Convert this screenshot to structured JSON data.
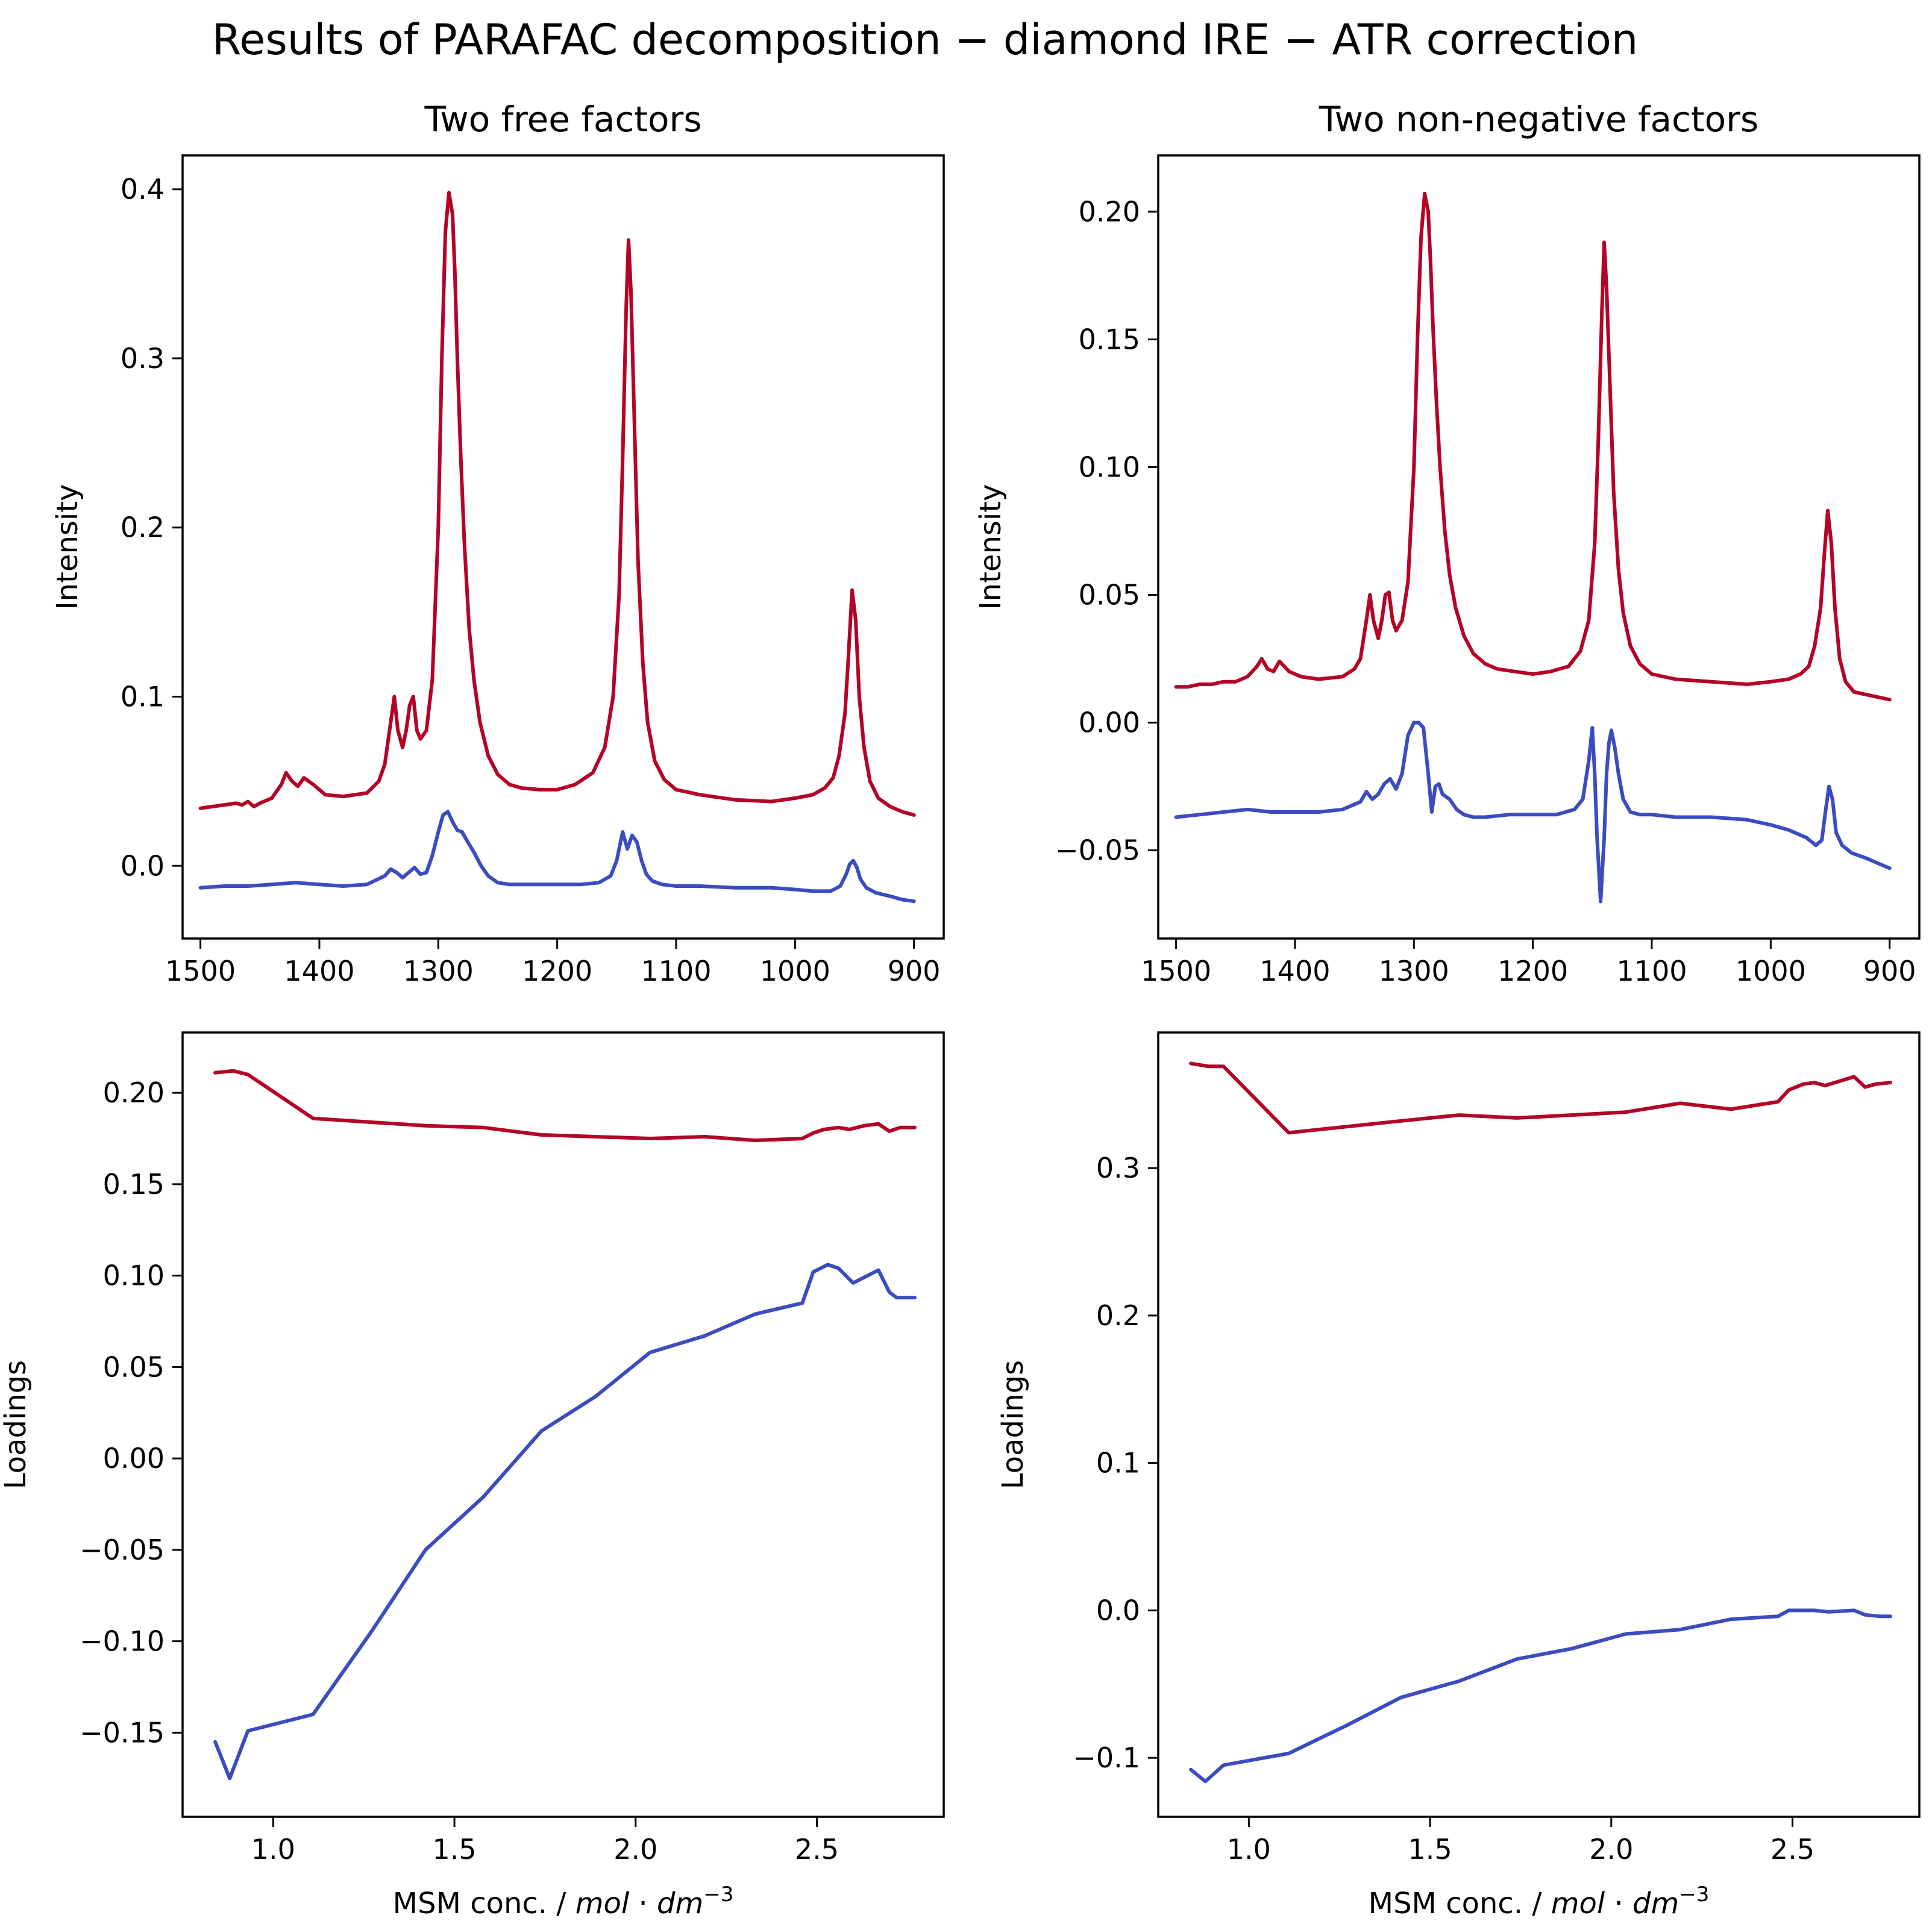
{
  "figure": {
    "title": "Results of PARAFAC decomposition − diamond IRE − ATR correction"
  },
  "colors": {
    "red": "#b40426",
    "blue": "#3b4cc0"
  },
  "chart_data": [
    {
      "id": "tl",
      "type": "line",
      "title": "Two free factors",
      "xlabel": "",
      "ylabel": "Intensity",
      "xlim": [
        1515,
        875
      ],
      "ylim": [
        -0.043,
        0.42
      ],
      "xticks": [
        1500,
        1400,
        1300,
        1200,
        1100,
        1000,
        900
      ],
      "xtick_labels": [
        "1500",
        "1400",
        "1300",
        "1200",
        "1100",
        "1000",
        "900"
      ],
      "yticks": [
        0.0,
        0.1,
        0.2,
        0.3,
        0.4
      ],
      "ytick_labels": [
        "0.0",
        "0.1",
        "0.2",
        "0.3",
        "0.4"
      ],
      "series": [
        {
          "color": "#b40426",
          "x": [
            1500,
            1490,
            1480,
            1470,
            1465,
            1460,
            1455,
            1450,
            1440,
            1432,
            1428,
            1423,
            1418,
            1413,
            1405,
            1395,
            1380,
            1360,
            1350,
            1345,
            1340,
            1337,
            1334,
            1330,
            1327,
            1324,
            1321,
            1318,
            1315,
            1310,
            1305,
            1300,
            1297,
            1294,
            1291,
            1288,
            1286,
            1284,
            1281,
            1278,
            1274,
            1270,
            1265,
            1258,
            1250,
            1240,
            1230,
            1215,
            1200,
            1185,
            1170,
            1160,
            1153,
            1148,
            1145,
            1142,
            1140,
            1138,
            1135,
            1132,
            1128,
            1124,
            1118,
            1110,
            1100,
            1080,
            1050,
            1020,
            1000,
            985,
            975,
            968,
            963,
            958,
            955,
            952,
            949,
            946,
            942,
            937,
            930,
            920,
            910,
            900
          ],
          "y": [
            0.034,
            0.035,
            0.036,
            0.037,
            0.036,
            0.038,
            0.035,
            0.037,
            0.04,
            0.048,
            0.055,
            0.05,
            0.047,
            0.052,
            0.048,
            0.042,
            0.041,
            0.043,
            0.05,
            0.06,
            0.085,
            0.1,
            0.08,
            0.07,
            0.08,
            0.095,
            0.1,
            0.08,
            0.075,
            0.08,
            0.11,
            0.2,
            0.3,
            0.375,
            0.398,
            0.385,
            0.35,
            0.3,
            0.24,
            0.19,
            0.14,
            0.11,
            0.085,
            0.065,
            0.054,
            0.048,
            0.046,
            0.045,
            0.045,
            0.048,
            0.055,
            0.07,
            0.1,
            0.16,
            0.24,
            0.33,
            0.37,
            0.34,
            0.26,
            0.18,
            0.12,
            0.085,
            0.062,
            0.051,
            0.045,
            0.042,
            0.039,
            0.038,
            0.04,
            0.042,
            0.046,
            0.052,
            0.065,
            0.09,
            0.125,
            0.163,
            0.145,
            0.1,
            0.07,
            0.05,
            0.04,
            0.035,
            0.032,
            0.03
          ]
        },
        {
          "color": "#3b4cc0",
          "x": [
            1500,
            1480,
            1460,
            1440,
            1420,
            1400,
            1380,
            1360,
            1345,
            1340,
            1335,
            1330,
            1325,
            1320,
            1315,
            1310,
            1305,
            1300,
            1296,
            1292,
            1288,
            1284,
            1280,
            1276,
            1270,
            1264,
            1258,
            1250,
            1240,
            1220,
            1200,
            1180,
            1165,
            1155,
            1150,
            1145,
            1141,
            1137,
            1133,
            1129,
            1125,
            1120,
            1112,
            1100,
            1080,
            1050,
            1020,
            1000,
            985,
            970,
            962,
            957,
            954,
            951,
            948,
            945,
            940,
            932,
            920,
            910,
            900
          ],
          "y": [
            -0.013,
            -0.012,
            -0.012,
            -0.011,
            -0.01,
            -0.011,
            -0.012,
            -0.011,
            -0.006,
            -0.002,
            -0.004,
            -0.007,
            -0.004,
            -0.001,
            -0.005,
            -0.004,
            0.006,
            0.02,
            0.03,
            0.032,
            0.026,
            0.021,
            0.02,
            0.015,
            0.008,
            0.0,
            -0.006,
            -0.01,
            -0.011,
            -0.011,
            -0.011,
            -0.011,
            -0.01,
            -0.006,
            0.003,
            0.02,
            0.01,
            0.018,
            0.014,
            0.003,
            -0.005,
            -0.009,
            -0.011,
            -0.012,
            -0.012,
            -0.013,
            -0.013,
            -0.014,
            -0.015,
            -0.015,
            -0.012,
            -0.005,
            0.001,
            0.003,
            -0.001,
            -0.008,
            -0.013,
            -0.016,
            -0.018,
            -0.02,
            -0.021
          ]
        }
      ]
    },
    {
      "id": "tr",
      "type": "line",
      "title": "Two non-negative factors",
      "xlabel": "",
      "ylabel": "Intensity",
      "xlim": [
        1515,
        875
      ],
      "ylim": [
        -0.0845,
        0.222
      ],
      "xticks": [
        1500,
        1400,
        1300,
        1200,
        1100,
        1000,
        900
      ],
      "xtick_labels": [
        "1500",
        "1400",
        "1300",
        "1200",
        "1100",
        "1000",
        "900"
      ],
      "yticks": [
        -0.05,
        0.0,
        0.05,
        0.1,
        0.15,
        0.2
      ],
      "ytick_labels": [
        "−0.05",
        "0.00",
        "0.05",
        "0.10",
        "0.15",
        "0.20"
      ],
      "series": [
        {
          "color": "#b40426",
          "x": [
            1500,
            1490,
            1480,
            1470,
            1460,
            1450,
            1440,
            1432,
            1428,
            1423,
            1418,
            1413,
            1405,
            1395,
            1380,
            1360,
            1350,
            1345,
            1340,
            1337,
            1334,
            1330,
            1327,
            1324,
            1321,
            1318,
            1315,
            1310,
            1305,
            1300,
            1297,
            1294,
            1291,
            1288,
            1286,
            1284,
            1281,
            1278,
            1274,
            1270,
            1265,
            1258,
            1250,
            1240,
            1230,
            1215,
            1200,
            1185,
            1170,
            1160,
            1153,
            1148,
            1145,
            1142,
            1140,
            1138,
            1135,
            1132,
            1128,
            1124,
            1118,
            1110,
            1100,
            1080,
            1050,
            1020,
            1000,
            985,
            975,
            968,
            963,
            958,
            955,
            952,
            949,
            946,
            942,
            937,
            930,
            920,
            910,
            900
          ],
          "y": [
            0.014,
            0.014,
            0.015,
            0.015,
            0.016,
            0.016,
            0.018,
            0.022,
            0.025,
            0.021,
            0.02,
            0.024,
            0.02,
            0.018,
            0.017,
            0.018,
            0.021,
            0.025,
            0.04,
            0.05,
            0.04,
            0.033,
            0.04,
            0.05,
            0.051,
            0.04,
            0.036,
            0.04,
            0.055,
            0.1,
            0.15,
            0.19,
            0.207,
            0.2,
            0.18,
            0.155,
            0.125,
            0.1,
            0.075,
            0.058,
            0.045,
            0.034,
            0.027,
            0.023,
            0.021,
            0.02,
            0.019,
            0.02,
            0.022,
            0.028,
            0.04,
            0.07,
            0.11,
            0.16,
            0.188,
            0.17,
            0.13,
            0.09,
            0.06,
            0.043,
            0.03,
            0.023,
            0.019,
            0.017,
            0.016,
            0.015,
            0.016,
            0.017,
            0.019,
            0.022,
            0.03,
            0.045,
            0.065,
            0.083,
            0.07,
            0.045,
            0.025,
            0.016,
            0.012,
            0.011,
            0.01,
            0.009
          ]
        },
        {
          "color": "#3b4cc0",
          "x": [
            1500,
            1480,
            1460,
            1440,
            1420,
            1400,
            1380,
            1360,
            1345,
            1340,
            1335,
            1330,
            1325,
            1320,
            1315,
            1310,
            1305,
            1300,
            1296,
            1292,
            1288,
            1285,
            1282,
            1279,
            1276,
            1270,
            1264,
            1258,
            1250,
            1240,
            1220,
            1200,
            1180,
            1165,
            1158,
            1153,
            1150,
            1148,
            1146,
            1143,
            1140,
            1138,
            1136,
            1134,
            1131,
            1128,
            1124,
            1118,
            1110,
            1100,
            1080,
            1050,
            1020,
            1000,
            985,
            970,
            962,
            957,
            954,
            951,
            948,
            945,
            940,
            932,
            920,
            910,
            900
          ],
          "y": [
            -0.037,
            -0.036,
            -0.035,
            -0.034,
            -0.035,
            -0.035,
            -0.035,
            -0.034,
            -0.031,
            -0.027,
            -0.03,
            -0.028,
            -0.024,
            -0.022,
            -0.026,
            -0.02,
            -0.005,
            0.0,
            0.0,
            -0.002,
            -0.02,
            -0.035,
            -0.025,
            -0.024,
            -0.028,
            -0.03,
            -0.034,
            -0.036,
            -0.037,
            -0.037,
            -0.036,
            -0.036,
            -0.036,
            -0.034,
            -0.03,
            -0.015,
            -0.002,
            -0.02,
            -0.045,
            -0.07,
            -0.045,
            -0.02,
            -0.008,
            -0.003,
            -0.01,
            -0.02,
            -0.03,
            -0.035,
            -0.036,
            -0.036,
            -0.037,
            -0.037,
            -0.038,
            -0.04,
            -0.042,
            -0.045,
            -0.048,
            -0.046,
            -0.035,
            -0.025,
            -0.03,
            -0.043,
            -0.048,
            -0.051,
            -0.053,
            -0.055,
            -0.057
          ]
        }
      ]
    },
    {
      "id": "bl",
      "type": "line",
      "title": "",
      "xlabel": "MSM conc. / mol·dm−3",
      "xlabel_parts": [
        "MSM conc. / ",
        "mol",
        " · ",
        "dm",
        "−3"
      ],
      "ylabel": "Loadings",
      "xlim": [
        0.75,
        2.85
      ],
      "ylim": [
        -0.196,
        0.233
      ],
      "xticks": [
        1.0,
        1.5,
        2.0,
        2.5
      ],
      "xtick_labels": [
        "1.0",
        "1.5",
        "2.0",
        "2.5"
      ],
      "yticks": [
        -0.15,
        -0.1,
        -0.05,
        0.0,
        0.05,
        0.1,
        0.15,
        0.2
      ],
      "ytick_labels": [
        "−0.15",
        "−0.10",
        "−0.05",
        "0.00",
        "0.05",
        "0.10",
        "0.15",
        "0.20"
      ],
      "series": [
        {
          "color": "#b40426",
          "x": [
            0.84,
            0.89,
            0.93,
            1.11,
            1.42,
            1.58,
            1.74,
            1.89,
            2.04,
            2.19,
            2.33,
            2.46,
            2.49,
            2.52,
            2.56,
            2.59,
            2.63,
            2.67,
            2.7,
            2.73,
            2.77
          ],
          "y": [
            0.211,
            0.212,
            0.21,
            0.186,
            0.182,
            0.181,
            0.177,
            0.176,
            0.175,
            0.176,
            0.174,
            0.175,
            0.178,
            0.18,
            0.181,
            0.18,
            0.182,
            0.183,
            0.179,
            0.181,
            0.181
          ]
        },
        {
          "color": "#3b4cc0",
          "x": [
            0.84,
            0.88,
            0.93,
            1.11,
            1.27,
            1.42,
            1.58,
            1.74,
            1.89,
            2.04,
            2.19,
            2.33,
            2.46,
            2.49,
            2.53,
            2.56,
            2.6,
            2.67,
            2.7,
            2.72,
            2.77
          ],
          "y": [
            -0.155,
            -0.175,
            -0.149,
            -0.14,
            -0.095,
            -0.05,
            -0.021,
            0.015,
            0.034,
            0.058,
            0.067,
            0.079,
            0.085,
            0.102,
            0.106,
            0.104,
            0.096,
            0.103,
            0.091,
            0.088,
            0.088
          ]
        }
      ]
    },
    {
      "id": "br",
      "type": "line",
      "title": "",
      "xlabel": "MSM conc. / mol·dm−3",
      "xlabel_parts": [
        "MSM conc. / ",
        "mol",
        " · ",
        "dm",
        "−3"
      ],
      "ylabel": "Loadings",
      "xlim": [
        0.75,
        2.85
      ],
      "ylim": [
        -0.14,
        0.392
      ],
      "xticks": [
        1.0,
        1.5,
        2.0,
        2.5
      ],
      "xtick_labels": [
        "1.0",
        "1.5",
        "2.0",
        "2.5"
      ],
      "yticks": [
        -0.1,
        0.0,
        0.1,
        0.2,
        0.3
      ],
      "ytick_labels": [
        "−0.1",
        "0.0",
        "0.1",
        "0.2",
        "0.3"
      ],
      "series": [
        {
          "color": "#b40426",
          "x": [
            0.84,
            0.89,
            0.93,
            1.11,
            1.42,
            1.58,
            1.74,
            1.89,
            2.04,
            2.19,
            2.33,
            2.46,
            2.49,
            2.53,
            2.56,
            2.59,
            2.63,
            2.67,
            2.7,
            2.73,
            2.77
          ],
          "y": [
            0.371,
            0.369,
            0.369,
            0.324,
            0.332,
            0.336,
            0.334,
            0.336,
            0.338,
            0.344,
            0.34,
            0.345,
            0.353,
            0.357,
            0.358,
            0.356,
            0.359,
            0.362,
            0.355,
            0.357,
            0.358
          ]
        },
        {
          "color": "#3b4cc0",
          "x": [
            0.84,
            0.88,
            0.93,
            1.11,
            1.27,
            1.42,
            1.58,
            1.74,
            1.89,
            2.04,
            2.19,
            2.33,
            2.46,
            2.49,
            2.53,
            2.56,
            2.6,
            2.67,
            2.7,
            2.74,
            2.77
          ],
          "y": [
            -0.108,
            -0.116,
            -0.105,
            -0.097,
            -0.078,
            -0.059,
            -0.048,
            -0.033,
            -0.026,
            -0.016,
            -0.013,
            -0.006,
            -0.004,
            0.0,
            0.0,
            0.0,
            -0.001,
            0.0,
            -0.003,
            -0.004,
            -0.004
          ]
        }
      ]
    }
  ]
}
